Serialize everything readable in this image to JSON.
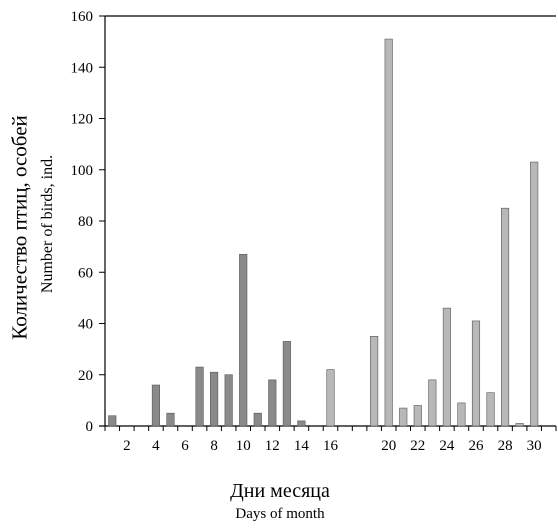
{
  "chart_data": {
    "type": "bar",
    "title": "",
    "ylabel_ru": "Количество птиц, особей",
    "ylabel_en": "Number of birds, ind.",
    "xlabel_ru": "Дни месяца",
    "xlabel_en": "Days of month",
    "ylim": [
      0,
      160
    ],
    "yticks": [
      0,
      20,
      40,
      60,
      80,
      100,
      120,
      140,
      160
    ],
    "xticks": [
      2,
      4,
      6,
      8,
      10,
      12,
      14,
      16,
      20,
      22,
      24,
      26,
      28,
      30
    ],
    "grid": false,
    "categories": [
      1,
      2,
      3,
      4,
      5,
      6,
      7,
      8,
      9,
      10,
      11,
      12,
      13,
      14,
      15,
      16,
      17,
      18,
      19,
      20,
      21,
      22,
      23,
      24,
      25,
      26,
      27,
      28,
      29,
      30,
      31
    ],
    "values": [
      4,
      0,
      0,
      16,
      5,
      0,
      23,
      21,
      20,
      67,
      5,
      18,
      33,
      2,
      0,
      22,
      0,
      0,
      35,
      151,
      7,
      8,
      18,
      46,
      9,
      41,
      13,
      85,
      1,
      103,
      0
    ],
    "series_colors": {
      "dark": "#8a8a8a",
      "light": "#b8b8b8"
    },
    "dark_days_upto": 14
  }
}
